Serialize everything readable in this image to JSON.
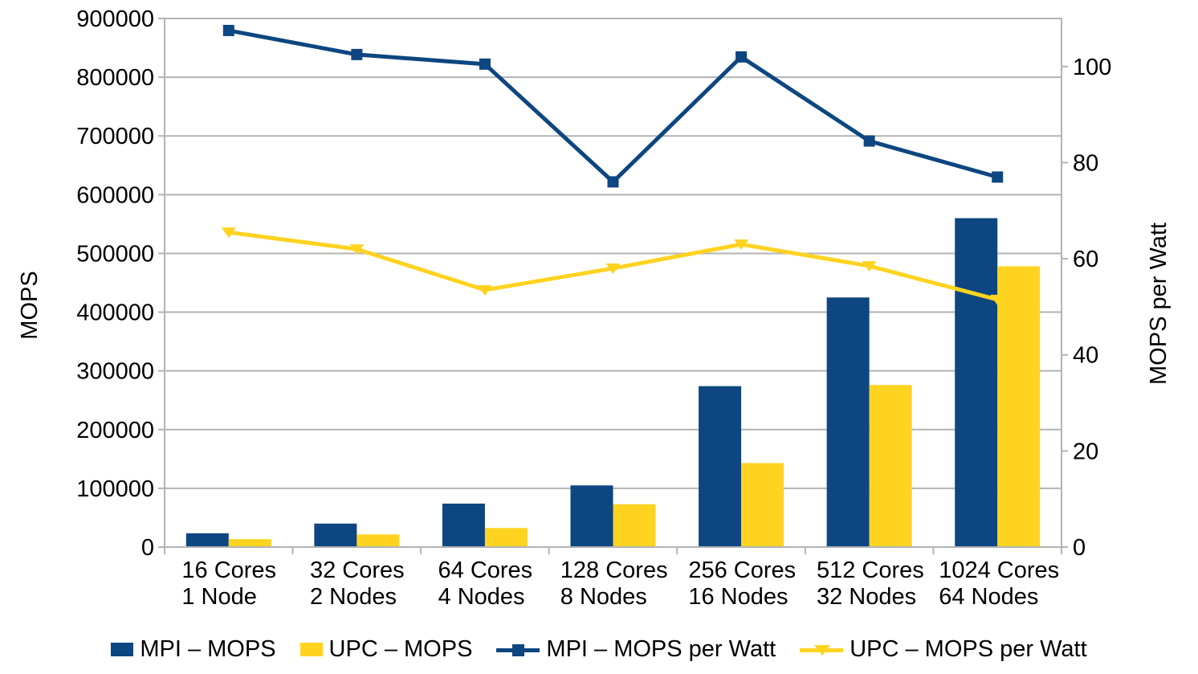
{
  "chart_data": {
    "type": "combo bar+line (grouped bars, dual y-axes)",
    "categories": [
      [
        "16 Cores",
        "1 Node"
      ],
      [
        "32 Cores",
        "2 Nodes"
      ],
      [
        "64 Cores",
        "4 Nodes"
      ],
      [
        "128 Cores",
        "8 Nodes"
      ],
      [
        "256 Cores",
        "16 Nodes"
      ],
      [
        "512 Cores",
        "32 Nodes"
      ],
      [
        "1024 Cores",
        "64 Nodes"
      ]
    ],
    "series": [
      {
        "name": "MPI – MOPS",
        "type": "bar",
        "axis": "left",
        "color": "#0D4680",
        "values": [
          23500,
          40000,
          74000,
          105000,
          274000,
          425000,
          560000
        ]
      },
      {
        "name": "UPC – MOPS",
        "type": "bar",
        "axis": "left",
        "color": "#FFD320",
        "values": [
          13500,
          21500,
          32500,
          73000,
          143000,
          276000,
          478000
        ]
      },
      {
        "name": "MPI – MOPS per Watt",
        "type": "line",
        "marker": "square",
        "axis": "right",
        "color": "#0D4680",
        "values": [
          107.5,
          102.5,
          100.5,
          76,
          102,
          84.5,
          77
        ]
      },
      {
        "name": "UPC – MOPS per Watt",
        "type": "line",
        "marker": "triangle-down",
        "axis": "right",
        "color": "#FFD320",
        "values": [
          65.5,
          62,
          53.5,
          58,
          63,
          58.5,
          51.5
        ]
      }
    ],
    "left_axis": {
      "title": "MOPS",
      "min": 0,
      "max": 900000,
      "tick_step": 100000,
      "tick_labels": [
        "0",
        "100000",
        "200000",
        "300000",
        "400000",
        "500000",
        "600000",
        "700000",
        "800000",
        "900000"
      ]
    },
    "right_axis": {
      "title": "MOPS per Watt",
      "min": 0,
      "max": 110,
      "ticks": [
        0,
        20,
        40,
        60,
        80,
        100
      ],
      "tick_labels": [
        "0",
        "20",
        "40",
        "60",
        "80",
        "100"
      ]
    },
    "grid": "horizontal only",
    "legend_position": "bottom",
    "colors": {
      "grid": "#B3B3B3",
      "axis": "#B3B3B3",
      "text": "#000000"
    }
  },
  "legend": [
    {
      "label": "MPI – MOPS",
      "marker": "rect",
      "color": "#0D4680"
    },
    {
      "label": "UPC – MOPS",
      "marker": "rect",
      "color": "#FFD320"
    },
    {
      "label": "MPI – MOPS per Watt",
      "marker": "line-square",
      "color": "#0D4680"
    },
    {
      "label": "UPC – MOPS per Watt",
      "marker": "line-triangle",
      "color": "#FFD320"
    }
  ]
}
